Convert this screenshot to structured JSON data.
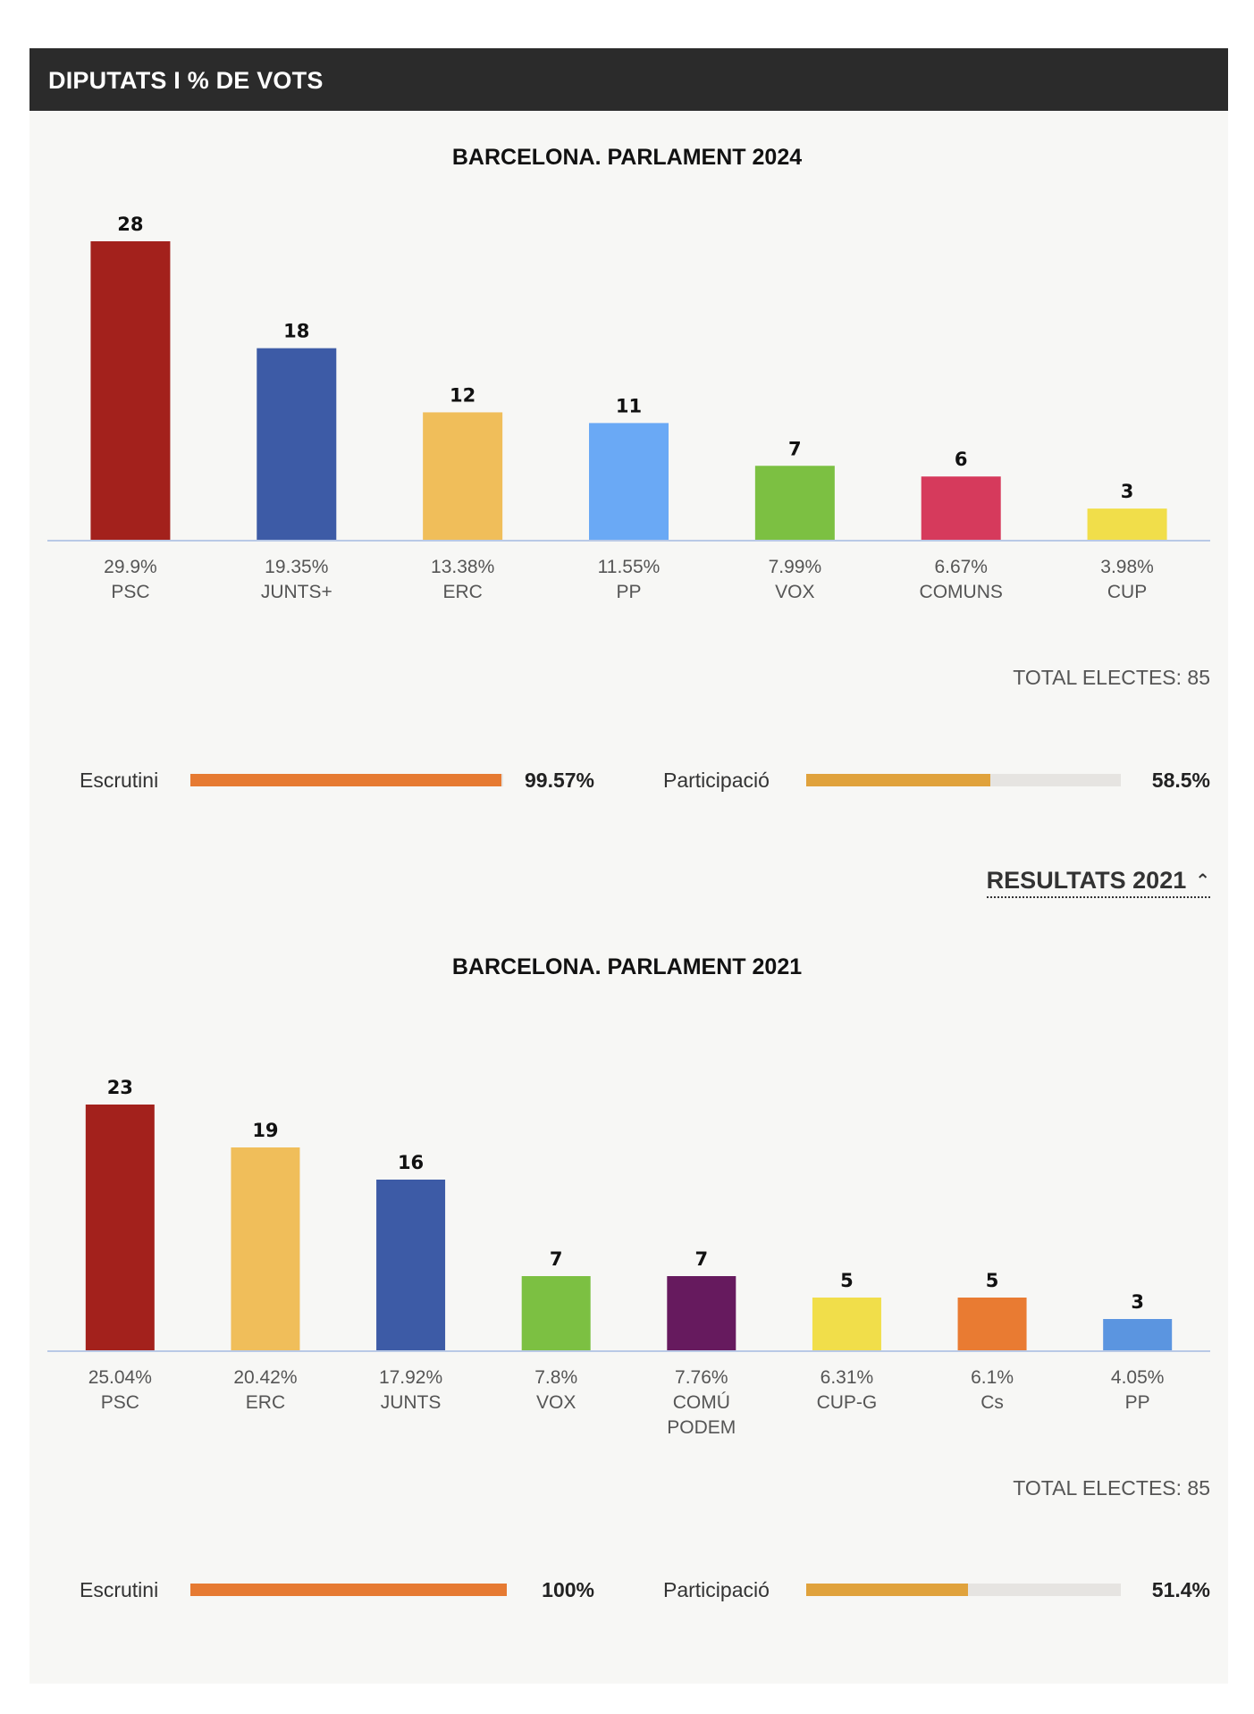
{
  "header": {
    "title": "DIPUTATS I % DE VOTS"
  },
  "toggle": {
    "label": "RESULTATS 2021"
  },
  "colors": {
    "axis": "#b9c9e6",
    "escrutini_fill": "#e67a32",
    "participacio_fill": "#e0a23c",
    "track": "#e6e4e1"
  },
  "chart_data": [
    {
      "type": "bar",
      "title": "BARCELONA. PARLAMENT 2024",
      "categories": [
        "PSC",
        "JUNTS+",
        "ERC",
        "PP",
        "VOX",
        "COMUNS",
        "CUP"
      ],
      "values": [
        28,
        18,
        12,
        11,
        7,
        6,
        3
      ],
      "percentages": [
        "29.9%",
        "19.35%",
        "13.38%",
        "11.55%",
        "7.99%",
        "6.67%",
        "3.98%"
      ],
      "colors": [
        "#a3211c",
        "#3d5ba6",
        "#f0be5a",
        "#6aa9f5",
        "#7cc042",
        "#d63a5c",
        "#f1de4a"
      ],
      "ylim": [
        0,
        28
      ],
      "grid": false,
      "total": "TOTAL ELECTES: 85",
      "escrutini": {
        "label": "Escrutini",
        "value": "99.57%",
        "fraction": 0.9957
      },
      "participacio": {
        "label": "Participació",
        "value": "58.5%",
        "fraction": 0.585
      }
    },
    {
      "type": "bar",
      "title": "BARCELONA. PARLAMENT 2021",
      "categories": [
        "PSC",
        "ERC",
        "JUNTS",
        "VOX",
        "COMÚ PODEM",
        "CUP-G",
        "Cs",
        "PP"
      ],
      "values": [
        23,
        19,
        16,
        7,
        7,
        5,
        5,
        3
      ],
      "percentages": [
        "25.04%",
        "20.42%",
        "17.92%",
        "7.8%",
        "7.76%",
        "6.31%",
        "6.1%",
        "4.05%"
      ],
      "colors": [
        "#a3211c",
        "#f0be5a",
        "#3d5ba6",
        "#7cc042",
        "#661a5e",
        "#f1de4a",
        "#e97b32",
        "#5b95e0"
      ],
      "ylim": [
        0,
        23
      ],
      "grid": false,
      "total": "TOTAL ELECTES: 85",
      "escrutini": {
        "label": "Escrutini",
        "value": "100%",
        "fraction": 1.0
      },
      "participacio": {
        "label": "Participació",
        "value": "51.4%",
        "fraction": 0.514
      }
    }
  ]
}
